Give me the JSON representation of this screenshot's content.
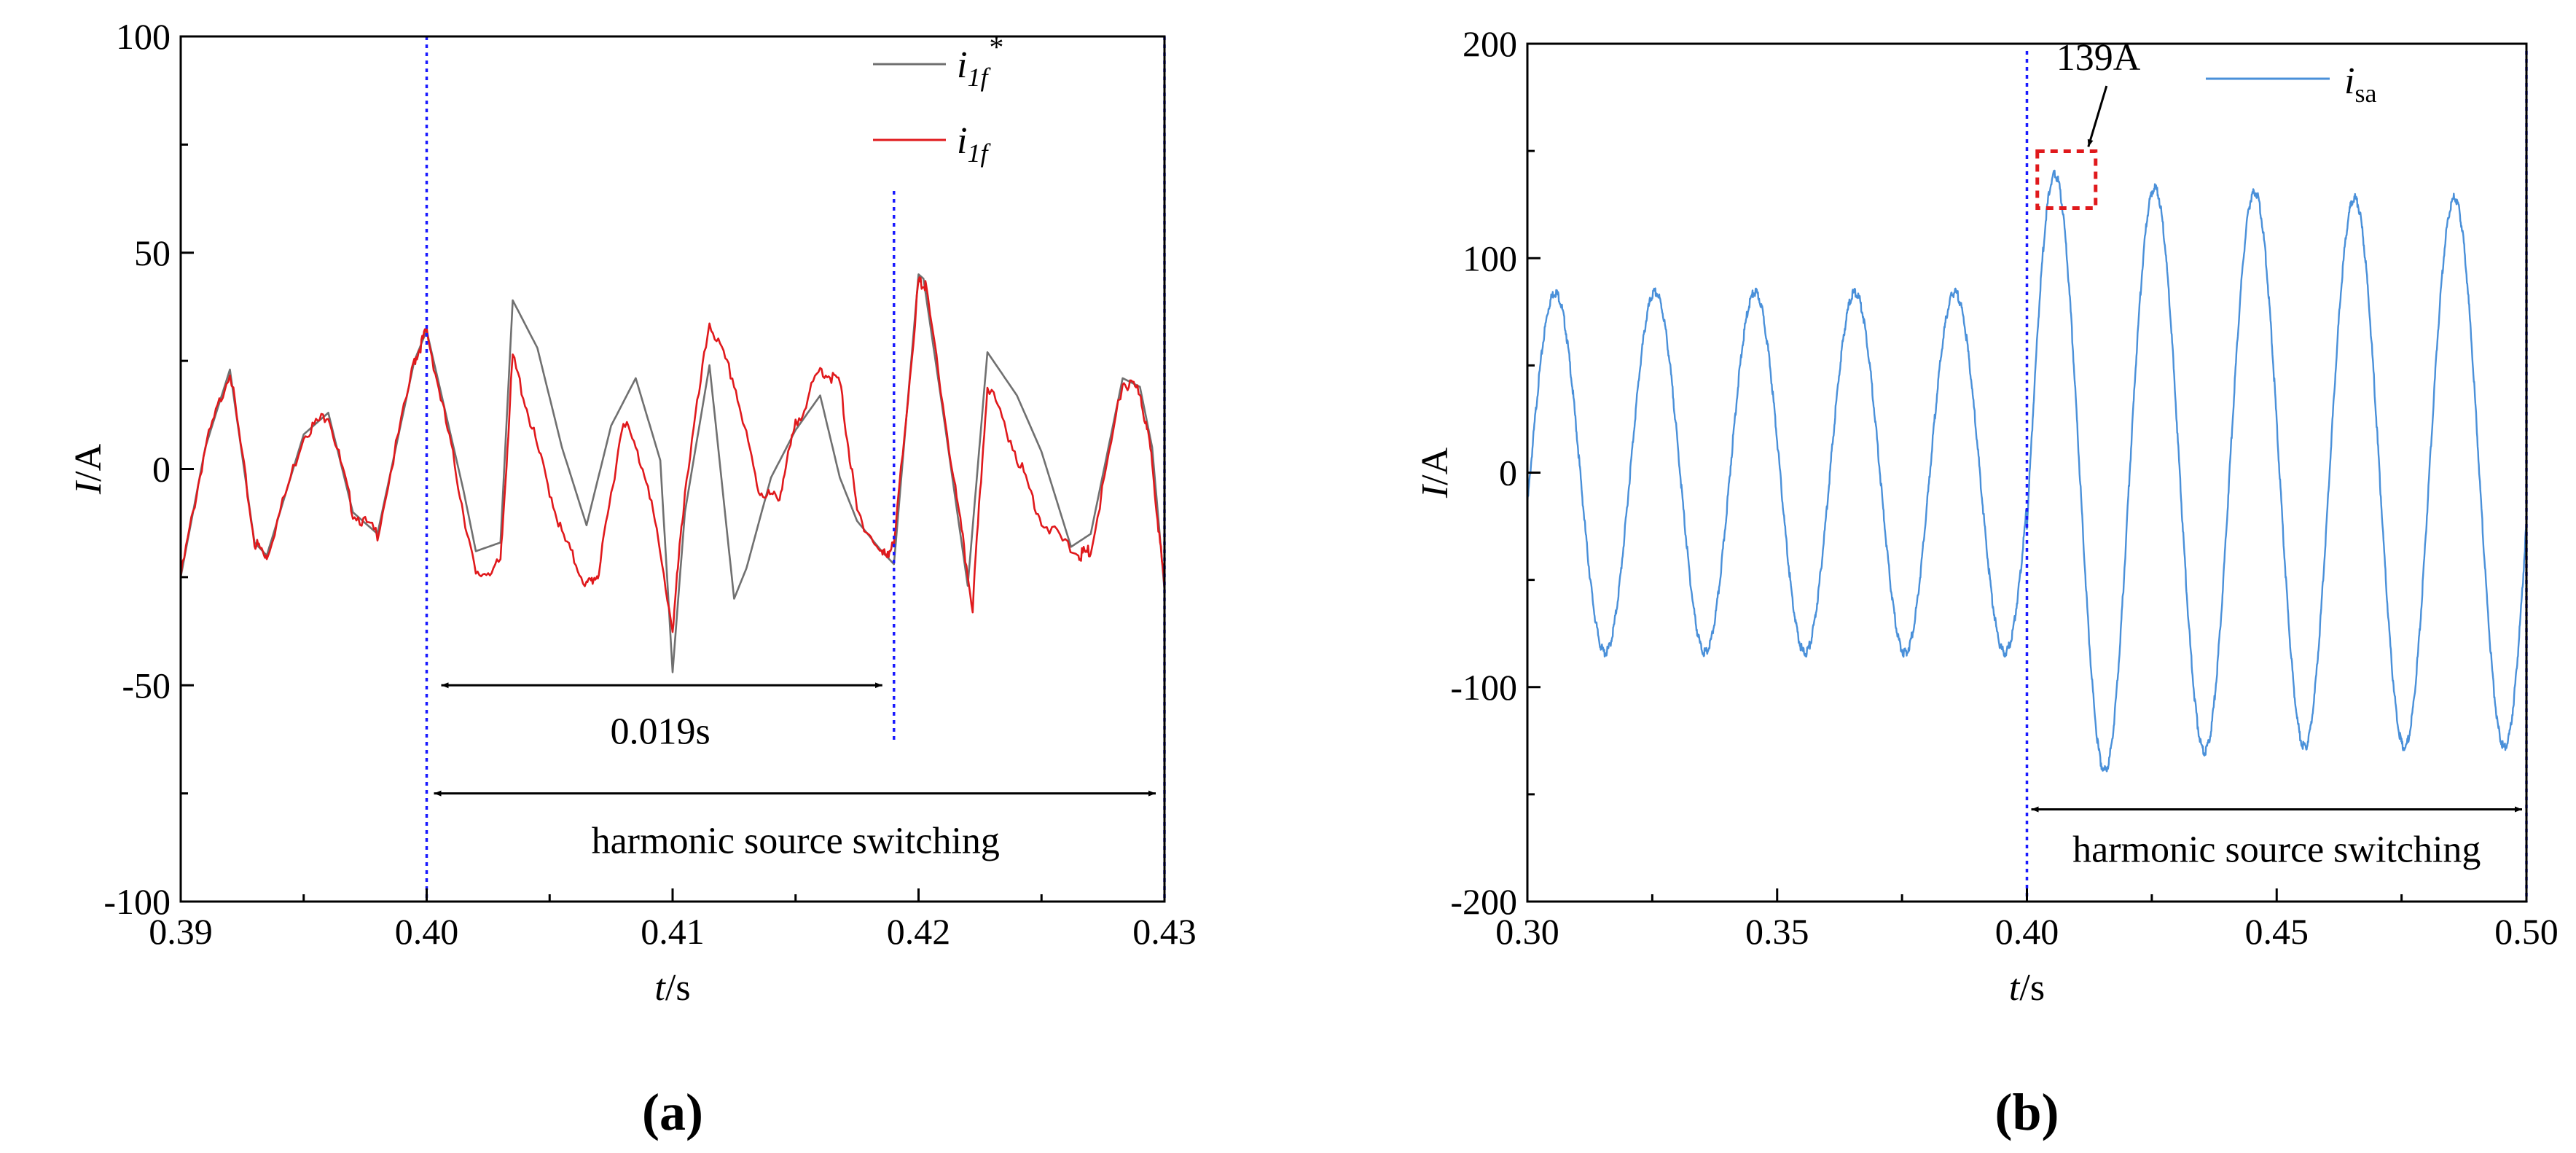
{
  "chart_data": [
    {
      "type": "line",
      "panel_label": "(a)",
      "xlabel": {
        "italic": "t",
        "rest": "/s"
      },
      "ylabel": {
        "italic": "I",
        "rest": "/A"
      },
      "xlim": [
        0.39,
        0.43
      ],
      "ylim": [
        -100,
        100
      ],
      "xticks": [
        0.39,
        0.4,
        0.41,
        0.42,
        0.43
      ],
      "xtick_labels": [
        "0.39",
        "0.40",
        "0.41",
        "0.42",
        "0.43"
      ],
      "yticks": [
        -100,
        -50,
        0,
        50,
        100
      ],
      "ytick_labels": [
        "-100",
        "-50",
        "0",
        "50",
        "100"
      ],
      "grid": false,
      "legend_position": "top-right",
      "series": [
        {
          "name": "i1f*",
          "legend": {
            "base": "i",
            "sub": "1f",
            "sup": "*"
          },
          "color": "#707070",
          "x": [
            0.39,
            0.391,
            0.392,
            0.393,
            0.3935,
            0.395,
            0.396,
            0.397,
            0.398,
            0.3995,
            0.4,
            0.4015,
            0.402,
            0.403,
            0.4035,
            0.4045,
            0.4055,
            0.4065,
            0.4075,
            0.4085,
            0.4095,
            0.41,
            0.4105,
            0.4115,
            0.4125,
            0.413,
            0.414,
            0.415,
            0.416,
            0.4168,
            0.4175,
            0.4185,
            0.419,
            0.42,
            0.4202,
            0.421,
            0.422,
            0.4228,
            0.424,
            0.425,
            0.4262,
            0.427,
            0.4283,
            0.429,
            0.4295,
            0.43
          ],
          "y": [
            -25,
            5,
            23,
            -17,
            -20,
            8,
            13,
            -10,
            -15,
            25,
            32,
            -5,
            -19,
            -17,
            39,
            28,
            5,
            -13,
            10,
            21,
            2,
            -47,
            -10,
            24,
            -30,
            -23,
            -2,
            9,
            17,
            -2,
            -12,
            -19,
            -22,
            45,
            44,
            13,
            -27,
            27,
            17,
            4,
            -18,
            -15,
            21,
            19,
            5,
            -28
          ]
        },
        {
          "name": "i1f",
          "legend": {
            "base": "i",
            "sub": "1f",
            "sup": ""
          },
          "color": "#e0191c",
          "x": [
            0.39,
            0.391,
            0.392,
            0.393,
            0.3935,
            0.395,
            0.396,
            0.397,
            0.398,
            0.3995,
            0.4,
            0.401,
            0.402,
            0.403,
            0.4035,
            0.4045,
            0.4055,
            0.4065,
            0.407,
            0.408,
            0.409,
            0.41,
            0.4105,
            0.4115,
            0.4125,
            0.4135,
            0.4143,
            0.415,
            0.416,
            0.4168,
            0.4175,
            0.4185,
            0.419,
            0.42,
            0.4203,
            0.4215,
            0.4222,
            0.4228,
            0.424,
            0.425,
            0.4265,
            0.427,
            0.4283,
            0.429,
            0.4295,
            0.43
          ],
          "y": [
            -25,
            5,
            23,
            -17,
            -20,
            8,
            13,
            -10,
            -15,
            25,
            32,
            5,
            -25,
            -22,
            26,
            5,
            -15,
            -27,
            -24,
            12,
            -3,
            -37,
            -5,
            34,
            20,
            -5,
            -7,
            10,
            23,
            20,
            -10,
            -20,
            -18,
            43,
            42,
            -5,
            -32,
            20,
            3,
            -12,
            -20,
            -19,
            20,
            18,
            2,
            -28
          ]
        },
        {
          "name": "markers",
          "vlines": [
            0.4,
            0.419,
            0.43
          ],
          "vline_color": "#1a1aff"
        }
      ],
      "annotations": [
        {
          "text": "0.019s",
          "arrow_from": 0.4,
          "arrow_to": 0.419,
          "y": -50
        },
        {
          "text": "harmonic source switching",
          "arrow_from": 0.4,
          "arrow_to": 0.43,
          "y": -75
        }
      ]
    },
    {
      "type": "line",
      "panel_label": "(b)",
      "xlabel": {
        "italic": "t",
        "rest": "/s"
      },
      "ylabel": {
        "italic": "I",
        "rest": "/A"
      },
      "xlim": [
        0.3,
        0.5
      ],
      "ylim": [
        -200,
        200
      ],
      "xticks": [
        0.3,
        0.35,
        0.4,
        0.45,
        0.5
      ],
      "xtick_labels": [
        "0.30",
        "0.35",
        "0.40",
        "0.45",
        "0.50"
      ],
      "yticks": [
        -200,
        -100,
        0,
        100,
        200
      ],
      "ytick_labels": [
        "-200",
        "-100",
        "0",
        "100",
        "200"
      ],
      "grid": false,
      "legend_position": "top-right",
      "series": [
        {
          "name": "isa",
          "legend": {
            "base": "i",
            "sub": "sa",
            "sup": ""
          },
          "color": "#4a90d9",
          "frequency_hz": 50,
          "amplitude_before": 84,
          "amplitude_after_peaks": [
            139,
            133,
            131,
            128,
            128,
            128,
            128,
            128,
            128,
            128
          ],
          "amplitude_after_troughs": [
            -139,
            -130,
            -128,
            -128,
            -128
          ],
          "switch_time": 0.4
        },
        {
          "name": "markers",
          "vlines": [
            0.4,
            0.5
          ],
          "vline_color": "#1a1aff"
        }
      ],
      "annotations": [
        {
          "text": "139A",
          "point_to_x": 0.405,
          "point_to_y": 139
        },
        {
          "text": "harmonic source switching",
          "arrow_from": 0.4,
          "arrow_to": 0.5,
          "y": -157
        }
      ]
    }
  ]
}
